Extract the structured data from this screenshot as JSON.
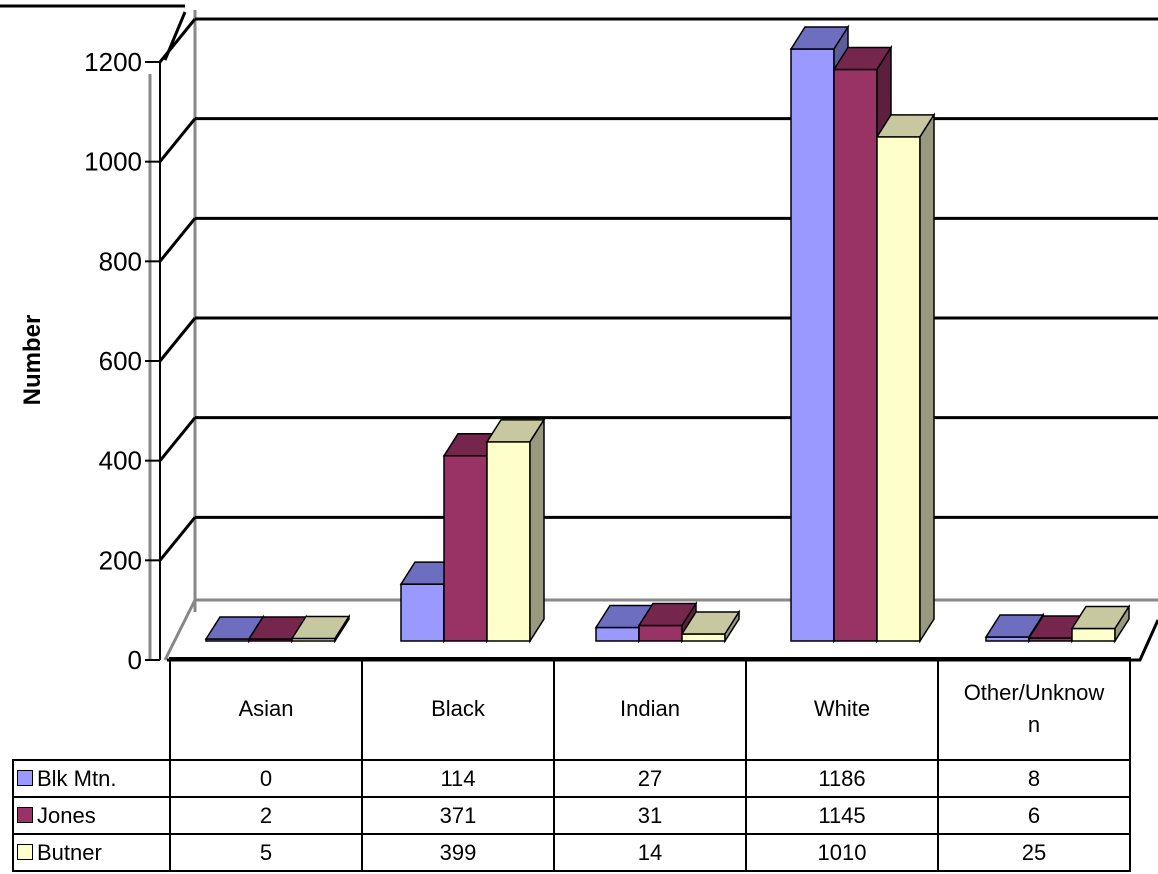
{
  "chart_data": {
    "type": "bar",
    "title": "",
    "xlabel": "",
    "ylabel": "Number",
    "ylim": [
      0,
      1200
    ],
    "yticks": [
      "0",
      "200",
      "400",
      "600",
      "800",
      "1000",
      "1200"
    ],
    "categories": [
      "Asian",
      "Black",
      "Indian",
      "White",
      "Other/Unknown"
    ],
    "category_labels": [
      [
        "Asian"
      ],
      [
        "Black"
      ],
      [
        "Indian"
      ],
      [
        "White"
      ],
      [
        "Other/Unknow",
        "n"
      ]
    ],
    "grid": true,
    "legend": "table-left",
    "series": [
      {
        "name": "Blk Mtn.",
        "values": [
          0,
          114,
          27,
          1186,
          8
        ],
        "color": "#9999ff",
        "top": "#6e6ec0",
        "side": "#5c5c99",
        "values_text": [
          "0",
          "114",
          "27",
          "1186",
          "8"
        ]
      },
      {
        "name": "Jones",
        "values": [
          2,
          371,
          31,
          1145,
          6
        ],
        "color": "#993366",
        "top": "#74264d",
        "side": "#5c1f3d",
        "values_text": [
          "2",
          "371",
          "31",
          "1145",
          "6"
        ]
      },
      {
        "name": "Butner",
        "values": [
          5,
          399,
          14,
          1010,
          25
        ],
        "color": "#ffffcc",
        "top": "#c8c8a0",
        "side": "#999980",
        "values_text": [
          "5",
          "399",
          "14",
          "1010",
          "25"
        ]
      }
    ]
  }
}
